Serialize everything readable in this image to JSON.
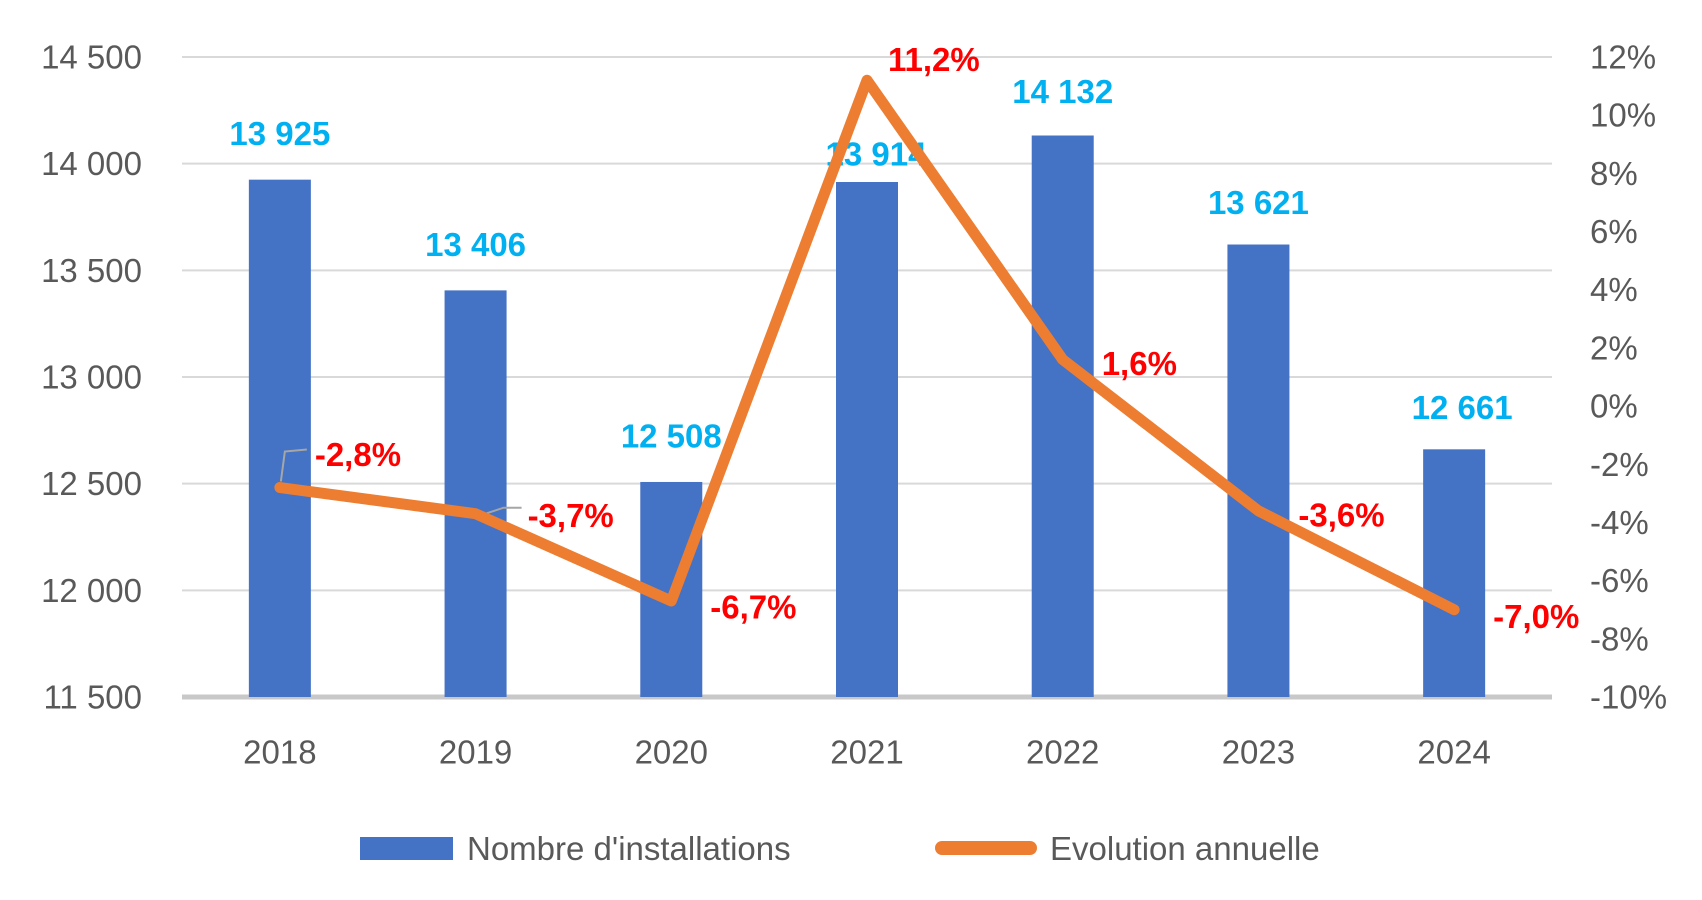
{
  "chart_data": {
    "type": "combo",
    "title": "",
    "categories": [
      "2018",
      "2019",
      "2020",
      "2021",
      "2022",
      "2023",
      "2024"
    ],
    "series": [
      {
        "name": "Nombre d'installations",
        "chart_type": "bar",
        "values": [
          13925,
          13406,
          12508,
          13914,
          14132,
          13621,
          12661
        ],
        "data_labels": [
          "13 925",
          "13 406",
          "12 508",
          "13 914",
          "14 132",
          "13 621",
          "12 661"
        ],
        "color": "#4472C4",
        "label_color": "#00B0F0",
        "axis": "left"
      },
      {
        "name": "Evolution annuelle",
        "chart_type": "line",
        "values": [
          -2.8,
          -3.7,
          -6.7,
          11.2,
          1.6,
          -3.6,
          -7.0
        ],
        "data_labels": [
          "-2,8%",
          "-3,7%",
          "-6,7%",
          "11,2%",
          "1,6%",
          "-3,6%",
          "-7,0%"
        ],
        "color": "#ED7D31",
        "label_color": "#FF0000",
        "axis": "right"
      }
    ],
    "left_axis": {
      "min": 11500,
      "max": 14500,
      "step": 500,
      "tick_labels": [
        "14 500",
        "14 000",
        "13 500",
        "13 000",
        "12 500",
        "12 000",
        "11 500"
      ]
    },
    "right_axis": {
      "min": -10,
      "max": 12,
      "step": 2,
      "tick_labels": [
        "12%",
        "10%",
        "8%",
        "6%",
        "4%",
        "2%",
        "0%",
        "-2%",
        "-4%",
        "-6%",
        "-8%",
        "-10%"
      ]
    },
    "legend": [
      {
        "label": "Nombre d'installations",
        "color": "#4472C4",
        "marker": "rect"
      },
      {
        "label": "Evolution annuelle",
        "color": "#ED7D31",
        "marker": "line"
      }
    ],
    "grid": true,
    "legend_position": "bottom",
    "styles": {
      "axis_text_color": "#595959",
      "gridline_color": "#D9D9D9",
      "axis_line_color": "#C8C8C8",
      "leader_line_color": "#A6A6A6",
      "background": "#FFFFFF"
    }
  }
}
